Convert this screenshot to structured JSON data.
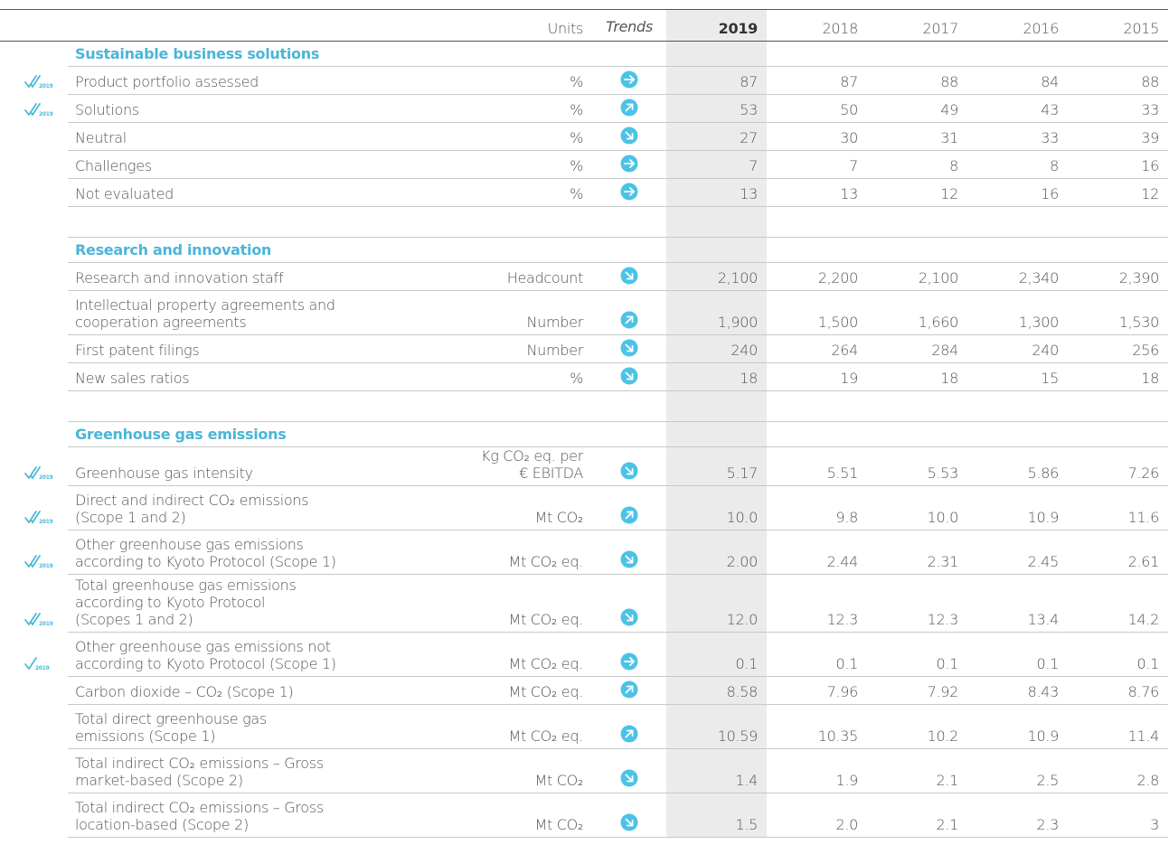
{
  "header": {
    "units": "Units",
    "trends": "Trends",
    "years": [
      "2019",
      "2018",
      "2017",
      "2016",
      "2015"
    ]
  },
  "check_label": "2019",
  "sections": [
    {
      "title": "Sustainable business solutions",
      "rows": [
        {
          "label": "Product portfolio assessed",
          "units": "%",
          "trend": "right",
          "check": "double",
          "values": [
            "87",
            "87",
            "88",
            "84",
            "88"
          ]
        },
        {
          "label": "Solutions",
          "units": "%",
          "trend": "up",
          "check": "double",
          "values": [
            "53",
            "50",
            "49",
            "43",
            "33"
          ]
        },
        {
          "label": "Neutral",
          "units": "%",
          "trend": "down",
          "values": [
            "27",
            "30",
            "31",
            "33",
            "39"
          ]
        },
        {
          "label": "Challenges",
          "units": "%",
          "trend": "right",
          "values": [
            "7",
            "7",
            "8",
            "8",
            "16"
          ]
        },
        {
          "label": "Not evaluated",
          "units": "%",
          "trend": "right",
          "values": [
            "13",
            "13",
            "12",
            "16",
            "12"
          ]
        }
      ]
    },
    {
      "title": "Research and innovation",
      "rows": [
        {
          "label": "Research and innovation staff",
          "units": "Headcount",
          "trend": "down",
          "values": [
            "2,100",
            "2,200",
            "2,100",
            "2,340",
            "2,390"
          ]
        },
        {
          "label": "Intellectual property agreements and\ncooperation agreements",
          "units": "Number",
          "trend": "up",
          "values": [
            "1,900",
            "1,500",
            "1,660",
            "1,300",
            "1,530"
          ]
        },
        {
          "label": "First patent filings",
          "units": "Number",
          "trend": "down",
          "values": [
            "240",
            "264",
            "284",
            "240",
            "256"
          ]
        },
        {
          "label": "New sales ratios",
          "units": "%",
          "trend": "down",
          "values": [
            "18",
            "19",
            "18",
            "15",
            "18"
          ]
        }
      ]
    },
    {
      "title": "Greenhouse gas emissions",
      "rows": [
        {
          "label": "Greenhouse gas intensity",
          "units": "Kg CO₂ eq. per\n€ EBITDA",
          "trend": "down",
          "check": "double",
          "values": [
            "5.17",
            "5.51",
            "5.53",
            "5.86",
            "7.26"
          ]
        },
        {
          "label": "Direct and indirect CO₂ emissions\n(Scope 1 and 2)",
          "units": "Mt CO₂",
          "trend": "up",
          "check": "double",
          "values": [
            "10.0",
            "9.8",
            "10.0",
            "10.9",
            "11.6"
          ]
        },
        {
          "label": "Other greenhouse gas emissions\naccording to Kyoto Protocol (Scope 1)",
          "units": "Mt CO₂ eq.",
          "trend": "down",
          "check": "double",
          "values": [
            "2.00",
            "2.44",
            "2.31",
            "2.45",
            "2.61"
          ]
        },
        {
          "label": "Total greenhouse gas emissions\naccording to Kyoto Protocol\n(Scopes 1 and 2)",
          "units": "Mt CO₂ eq.",
          "trend": "down",
          "check": "double",
          "values": [
            "12.0",
            "12.3",
            "12.3",
            "13.4",
            "14.2"
          ]
        },
        {
          "label": "Other greenhouse gas emissions not\naccording to Kyoto Protocol (Scope 1)",
          "units": "Mt CO₂ eq.",
          "trend": "right",
          "check": "single",
          "values": [
            "0.1",
            "0.1",
            "0.1",
            "0.1",
            "0.1"
          ]
        },
        {
          "label": "Carbon dioxide – CO₂ (Scope 1)",
          "units": "Mt CO₂ eq.",
          "trend": "up",
          "values": [
            "8.58",
            "7.96",
            "7.92",
            "8.43",
            "8.76"
          ]
        },
        {
          "label": "Total direct greenhouse gas\nemissions (Scope 1)",
          "units": "Mt CO₂ eq.",
          "trend": "up",
          "values": [
            "10.59",
            "10.35",
            "10.2",
            "10.9",
            "11.4"
          ]
        },
        {
          "label": "Total indirect CO₂ emissions – Gross\nmarket-based (Scope 2)",
          "units": "Mt CO₂",
          "trend": "down",
          "values": [
            "1.4",
            "1.9",
            "2.1",
            "2.5",
            "2.8"
          ]
        },
        {
          "label": "Total indirect CO₂ emissions – Gross\nlocation-based (Scope 2)",
          "units": "Mt CO₂",
          "trend": "down",
          "values": [
            "1.5",
            "2.0",
            "2.1",
            "2.3",
            "3"
          ]
        }
      ]
    }
  ]
}
